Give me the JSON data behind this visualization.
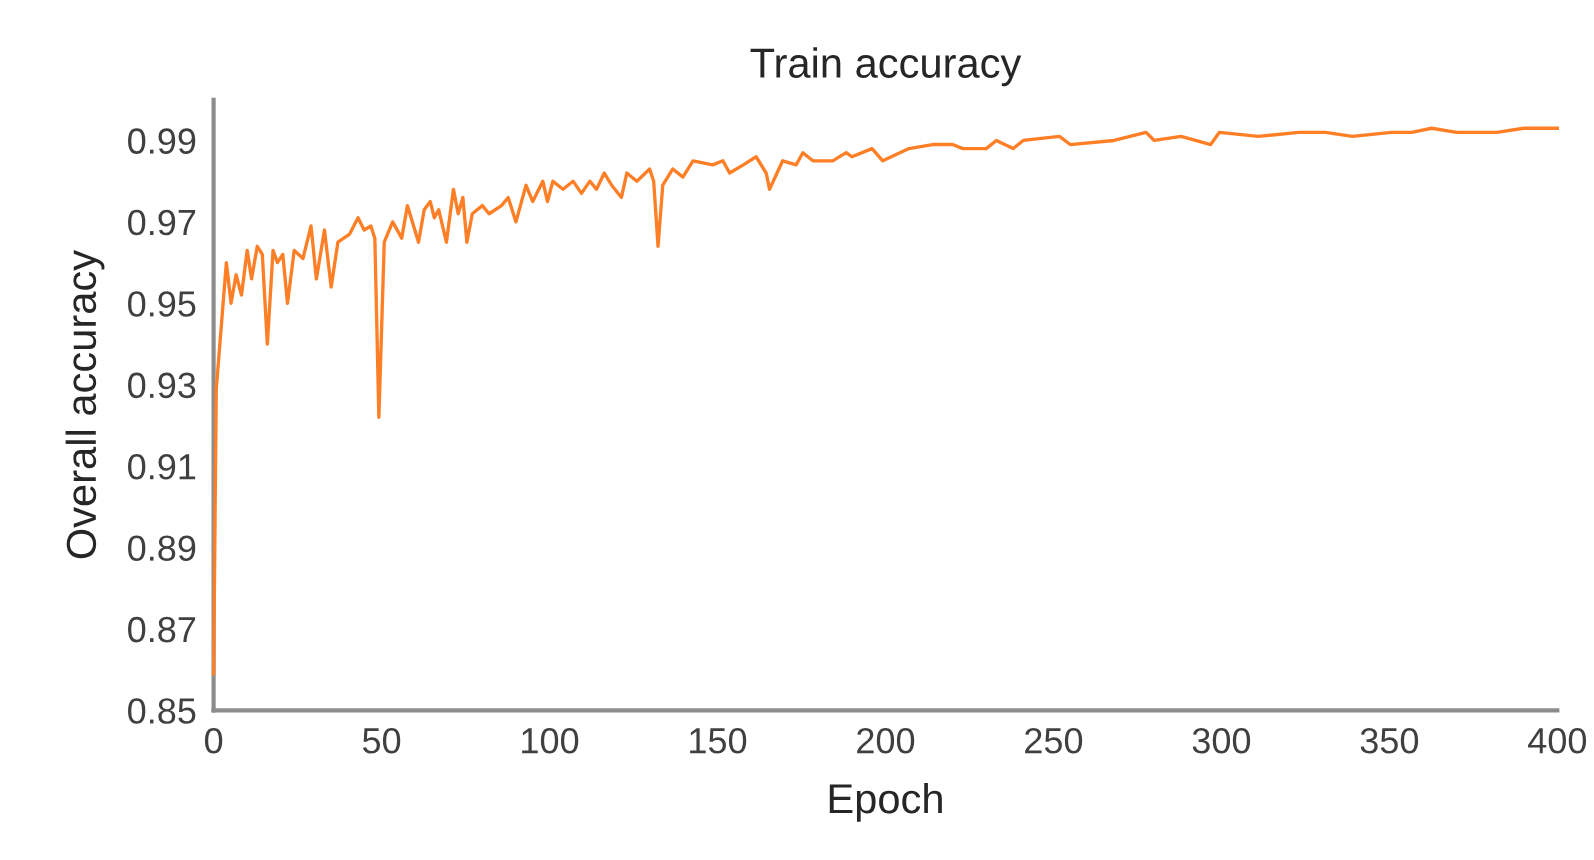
{
  "chart_data": {
    "type": "line",
    "title": "Train accuracy",
    "xlabel": "Epoch",
    "ylabel": "Overall accuracy",
    "xlim": [
      0,
      400
    ],
    "xticks": [
      0,
      50,
      100,
      150,
      200,
      250,
      300,
      350,
      400
    ],
    "ylim": [
      0.85,
      1.0
    ],
    "yticks": [
      0.85,
      0.87,
      0.89,
      0.91,
      0.93,
      0.95,
      0.97,
      0.99
    ],
    "grid": false,
    "marker": "none",
    "line_style": "solid",
    "series": [
      {
        "color": "#ff7f27",
        "x": [
          0,
          0.8,
          3.8,
          5.2,
          6.7,
          8.3,
          10,
          11.3,
          13,
          14.5,
          16,
          17.7,
          19,
          20.6,
          22,
          24,
          26.6,
          29,
          30.6,
          33,
          35,
          37,
          40.5,
          43,
          44.8,
          46.8,
          48,
          49.2,
          50.8,
          53.3,
          56,
          57.7,
          61,
          62.7,
          64.5,
          65.7,
          67,
          69.3,
          71.4,
          72.8,
          74.2,
          75.4,
          77,
          80,
          82,
          85.7,
          87.7,
          90,
          93,
          95,
          98,
          99.4,
          101,
          104,
          107,
          109.5,
          112,
          114,
          116.3,
          118.5,
          121.4,
          123,
          126,
          129.8,
          131,
          132.3,
          133.7,
          136.7,
          139.7,
          142.7,
          148.6,
          151.6,
          153.6,
          157.7,
          161.5,
          164.5,
          165.5,
          169.4,
          173.4,
          175.4,
          178.4,
          184.3,
          188.3,
          190,
          196,
          199.2,
          207,
          214,
          220,
          223,
          230,
          233,
          238,
          241,
          251.8,
          255,
          268,
          277.6,
          280,
          288,
          296.8,
          299.4,
          311,
          323,
          331,
          339,
          350.6,
          356.6,
          362.6,
          370,
          382,
          390,
          400
        ],
        "values": [
          0.859,
          0.929,
          0.96,
          0.95,
          0.957,
          0.952,
          0.963,
          0.956,
          0.964,
          0.962,
          0.94,
          0.963,
          0.96,
          0.962,
          0.95,
          0.963,
          0.961,
          0.969,
          0.956,
          0.968,
          0.954,
          0.965,
          0.967,
          0.971,
          0.968,
          0.969,
          0.966,
          0.922,
          0.965,
          0.97,
          0.966,
          0.974,
          0.965,
          0.973,
          0.975,
          0.971,
          0.973,
          0.965,
          0.978,
          0.972,
          0.976,
          0.965,
          0.972,
          0.974,
          0.972,
          0.974,
          0.976,
          0.97,
          0.979,
          0.975,
          0.98,
          0.975,
          0.98,
          0.978,
          0.98,
          0.977,
          0.98,
          0.978,
          0.982,
          0.979,
          0.976,
          0.982,
          0.98,
          0.983,
          0.98,
          0.964,
          0.979,
          0.983,
          0.981,
          0.985,
          0.984,
          0.985,
          0.982,
          0.984,
          0.986,
          0.982,
          0.978,
          0.985,
          0.984,
          0.987,
          0.985,
          0.985,
          0.987,
          0.986,
          0.988,
          0.985,
          0.988,
          0.989,
          0.989,
          0.988,
          0.988,
          0.99,
          0.988,
          0.99,
          0.991,
          0.989,
          0.99,
          0.992,
          0.99,
          0.991,
          0.989,
          0.992,
          0.991,
          0.992,
          0.992,
          0.991,
          0.992,
          0.992,
          0.993,
          0.992,
          0.992,
          0.993,
          0.993
        ]
      }
    ]
  }
}
